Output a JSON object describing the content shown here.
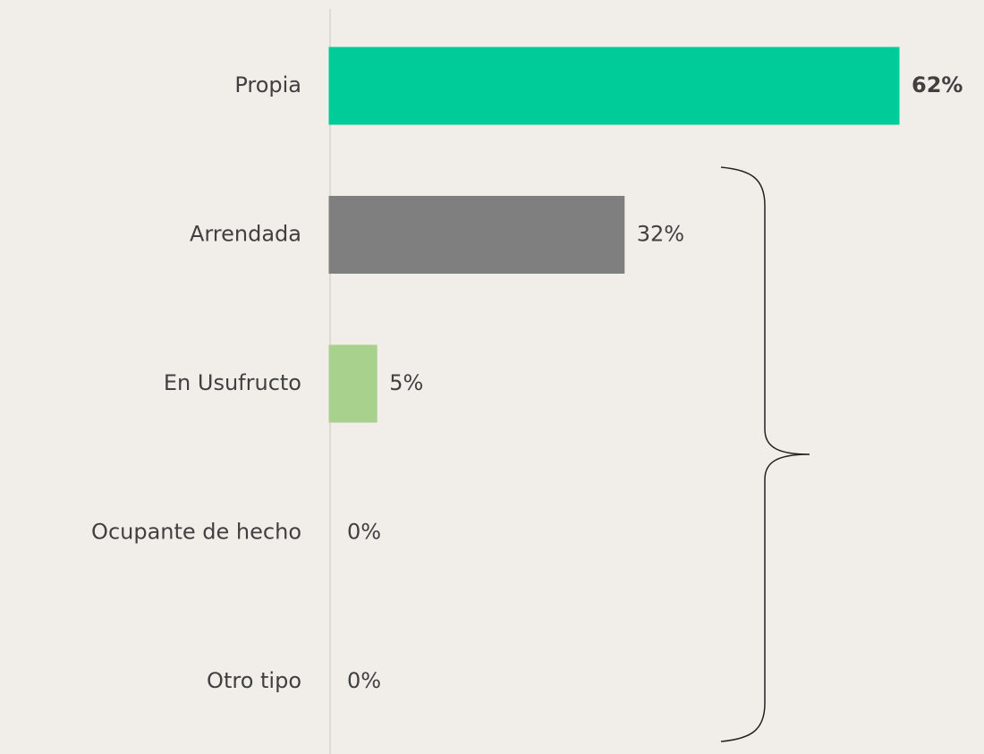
{
  "chart_data": {
    "type": "bar",
    "orientation": "horizontal",
    "categories": [
      "Propia",
      "Arrendada",
      "En Usufructo",
      "Ocupante de hecho",
      "Otro tipo"
    ],
    "values": [
      62,
      32,
      5,
      0,
      0
    ],
    "value_labels": [
      "62%",
      "32%",
      "5%",
      "0%",
      "0%"
    ],
    "colors": [
      "#00cc99",
      "#7f7f7f",
      "#a9d18e",
      "#c9b79c",
      "#ed7d31"
    ]
  }
}
